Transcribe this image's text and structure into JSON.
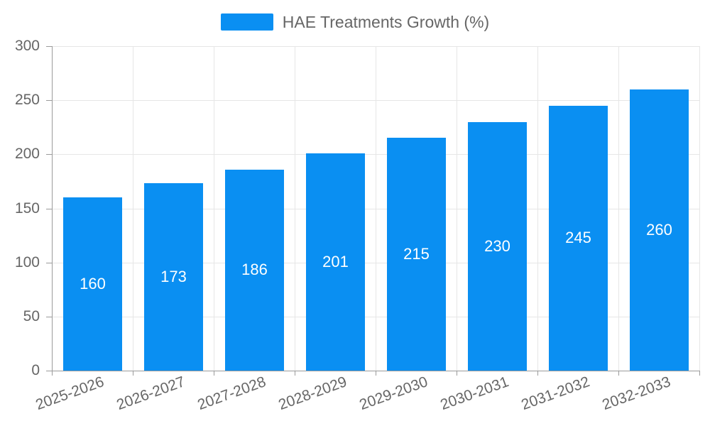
{
  "legend": {
    "label": "HAE Treatments Growth (%)"
  },
  "colors": {
    "bar": "#0a8ff2",
    "grid": "#e6e6e6",
    "axis": "#9b9b9b",
    "tick_text": "#666666",
    "legend_text": "#666666",
    "bar_label_text": "#ffffff"
  },
  "chart_data": {
    "type": "bar",
    "title": "",
    "xlabel": "",
    "ylabel": "",
    "categories": [
      "2025-2026",
      "2026-2027",
      "2027-2028",
      "2028-2029",
      "2029-2030",
      "2030-2031",
      "2031-2032",
      "2032-2033"
    ],
    "series": [
      {
        "name": "HAE Treatments Growth (%)",
        "values": [
          160,
          173,
          186,
          201,
          215,
          230,
          245,
          260
        ]
      }
    ],
    "ylim": [
      0,
      300
    ],
    "ytick_step": 50,
    "yticks": [
      0,
      50,
      100,
      150,
      200,
      250,
      300
    ],
    "grid": true,
    "legend_position": "top-center",
    "bar_value_labels": "inside-center",
    "x_label_rotation_deg": -20
  }
}
